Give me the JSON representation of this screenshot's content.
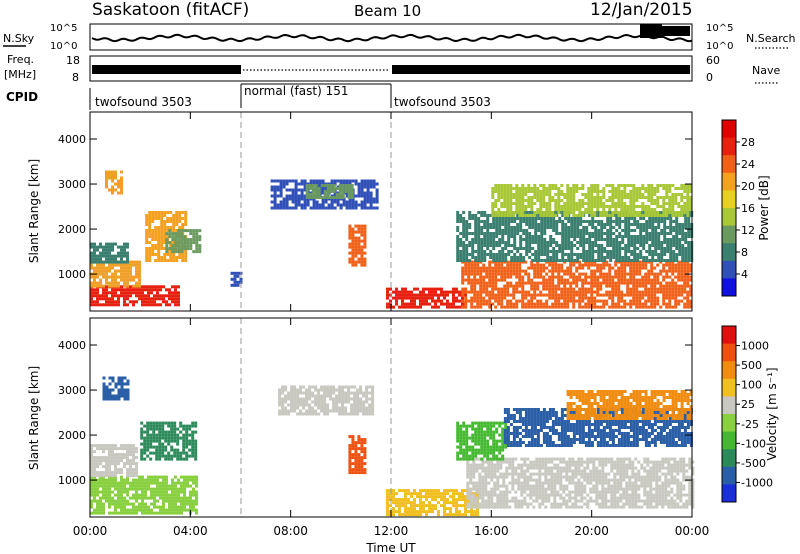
{
  "header": {
    "station": "Saskatoon (fitACF)",
    "beam": "Beam 10",
    "date": "12/Jan/2015"
  },
  "noise_panel": {
    "left_label": "N.Sky",
    "right_label": "N.Search",
    "left_ticks": [
      "10^5",
      "10^0"
    ],
    "right_ticks": [
      "10^5",
      "10^0"
    ]
  },
  "freq_panel": {
    "left_label_1": "Freq.",
    "left_label_2": "[MHz]",
    "left_ticks": [
      "18",
      "8"
    ],
    "right_ticks": [
      "60",
      "0"
    ],
    "right_label": "Nave"
  },
  "cpid": {
    "label": "CPID",
    "segments": [
      {
        "label": "twofsound 3503",
        "start": 0,
        "end": 6
      },
      {
        "label": "normal (fast) 151",
        "start": 6,
        "end": 12
      },
      {
        "label": "twofsound 3503",
        "start": 12,
        "end": 24
      }
    ]
  },
  "chart_data": [
    {
      "type": "heatmap",
      "title": "",
      "xlabel": "Time UT",
      "ylabel": "Slant Range [km]",
      "xlim": [
        0,
        24
      ],
      "ylim": [
        180,
        4600
      ],
      "x_ticks": [
        "00:00",
        "04:00",
        "08:00",
        "12:00",
        "16:00",
        "20:00",
        "00:00"
      ],
      "y_ticks": [
        1000,
        2000,
        3000,
        4000
      ],
      "colorbar": {
        "label": "Power [dB]",
        "ticks": [
          "4",
          "8",
          "12",
          "16",
          "20",
          "24",
          "28"
        ],
        "colors": [
          "#1010e0",
          "#3050b8",
          "#3a7f70",
          "#6a9a60",
          "#a8c838",
          "#e8d020",
          "#f4a020",
          "#f06018",
          "#e82010",
          "#e00000"
        ]
      },
      "regions": [
        {
          "t0": 0.0,
          "t1": 3.5,
          "r0": 300,
          "r1": 750,
          "color": "#e82010"
        },
        {
          "t0": 0.0,
          "t1": 2.0,
          "r0": 750,
          "r1": 1300,
          "color": "#f0a028"
        },
        {
          "t0": 0.0,
          "t1": 1.5,
          "r0": 1300,
          "r1": 1700,
          "color": "#3a7f70"
        },
        {
          "t0": 2.2,
          "t1": 3.8,
          "r0": 1300,
          "r1": 2400,
          "color": "#f4a020"
        },
        {
          "t0": 3.0,
          "t1": 4.4,
          "r0": 1500,
          "r1": 2000,
          "color": "#6a9a60"
        },
        {
          "t0": 0.6,
          "t1": 1.3,
          "r0": 2800,
          "r1": 3300,
          "color": "#f0a028"
        },
        {
          "t0": 5.6,
          "t1": 6.0,
          "r0": 750,
          "r1": 1050,
          "color": "#3050b8"
        },
        {
          "t0": 7.2,
          "t1": 11.4,
          "r0": 2500,
          "r1": 3100,
          "color": "#3050b8"
        },
        {
          "t0": 8.6,
          "t1": 10.4,
          "r0": 2700,
          "r1": 3000,
          "color": "#6a9a60"
        },
        {
          "t0": 10.3,
          "t1": 10.9,
          "r0": 1200,
          "r1": 2100,
          "color": "#f06018"
        },
        {
          "t0": 11.8,
          "t1": 15.0,
          "r0": 250,
          "r1": 700,
          "color": "#e82010"
        },
        {
          "t0": 14.8,
          "t1": 24.0,
          "r0": 300,
          "r1": 1300,
          "color": "#f06018"
        },
        {
          "t0": 14.6,
          "t1": 24.0,
          "r0": 1300,
          "r1": 2400,
          "color": "#3a7f70"
        },
        {
          "t0": 16.0,
          "t1": 24.0,
          "r0": 2300,
          "r1": 3000,
          "color": "#a8c838"
        }
      ]
    },
    {
      "type": "heatmap",
      "title": "",
      "xlabel": "Time UT",
      "ylabel": "Slant Range [km]",
      "xlim": [
        0,
        24
      ],
      "ylim": [
        180,
        4600
      ],
      "x_ticks": [
        "00:00",
        "04:00",
        "08:00",
        "12:00",
        "16:00",
        "20:00",
        "00:00"
      ],
      "y_ticks": [
        1000,
        2000,
        3000,
        4000
      ],
      "colorbar": {
        "label": "Velocity [m s⁻¹]",
        "ticks": [
          "1000",
          "500",
          "100",
          "25",
          "-25",
          "-100",
          "-500",
          "-1000"
        ],
        "colors": [
          "#1a2fd8",
          "#2a5fa8",
          "#2c8a5a",
          "#44b830",
          "#88d040",
          "#c8c8c0",
          "#f0c020",
          "#f08c10",
          "#ee5010",
          "#e01010"
        ]
      },
      "regions": [
        {
          "t0": 0.0,
          "t1": 4.2,
          "r0": 300,
          "r1": 1100,
          "color": "#88d040"
        },
        {
          "t0": 0.0,
          "t1": 1.8,
          "r0": 1100,
          "r1": 1800,
          "color": "#c8c8c0"
        },
        {
          "t0": 2.0,
          "t1": 4.2,
          "r0": 1500,
          "r1": 2300,
          "color": "#2c8a5a"
        },
        {
          "t0": 0.5,
          "t1": 1.5,
          "r0": 2800,
          "r1": 3300,
          "color": "#2a5fa8"
        },
        {
          "t0": 7.5,
          "t1": 11.3,
          "r0": 2500,
          "r1": 3100,
          "color": "#c8c8c0"
        },
        {
          "t0": 10.3,
          "t1": 10.9,
          "r0": 1200,
          "r1": 2000,
          "color": "#ee5010"
        },
        {
          "t0": 11.8,
          "t1": 15.5,
          "r0": 250,
          "r1": 800,
          "color": "#f0c020"
        },
        {
          "t0": 15.0,
          "t1": 24.0,
          "r0": 400,
          "r1": 1500,
          "color": "#c8c8c0"
        },
        {
          "t0": 14.6,
          "t1": 16.6,
          "r0": 1500,
          "r1": 2300,
          "color": "#44b830"
        },
        {
          "t0": 16.5,
          "t1": 24.0,
          "r0": 1800,
          "r1": 2600,
          "color": "#2a5fa8"
        },
        {
          "t0": 19.0,
          "t1": 24.0,
          "r0": 2400,
          "r1": 3000,
          "color": "#f08c10"
        }
      ]
    }
  ]
}
